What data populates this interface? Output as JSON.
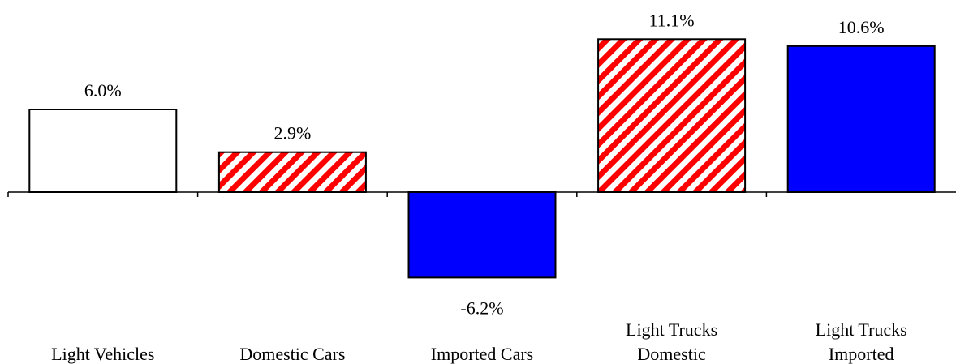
{
  "chart_data": {
    "type": "bar",
    "categories": [
      [
        "Light Vehicles"
      ],
      [
        "Domestic Cars"
      ],
      [
        "Imported Cars"
      ],
      [
        "Light Trucks",
        "Domestic"
      ],
      [
        "Light  Trucks",
        "Imported"
      ]
    ],
    "values": [
      6.0,
      2.9,
      -6.2,
      11.1,
      10.6
    ],
    "value_labels": [
      "6.0%",
      "2.9%",
      "-6.2%",
      "11.1%",
      "10.6%"
    ],
    "bar_styles": [
      "white",
      "red-hatch",
      "blue",
      "red-hatch",
      "blue"
    ],
    "colors": {
      "blue": "#0000ff",
      "red": "#ff0000",
      "white": "#ffffff",
      "outline": "#000000"
    },
    "ylim": [
      -12.0,
      13.5
    ],
    "grid": false,
    "legend": "none"
  }
}
